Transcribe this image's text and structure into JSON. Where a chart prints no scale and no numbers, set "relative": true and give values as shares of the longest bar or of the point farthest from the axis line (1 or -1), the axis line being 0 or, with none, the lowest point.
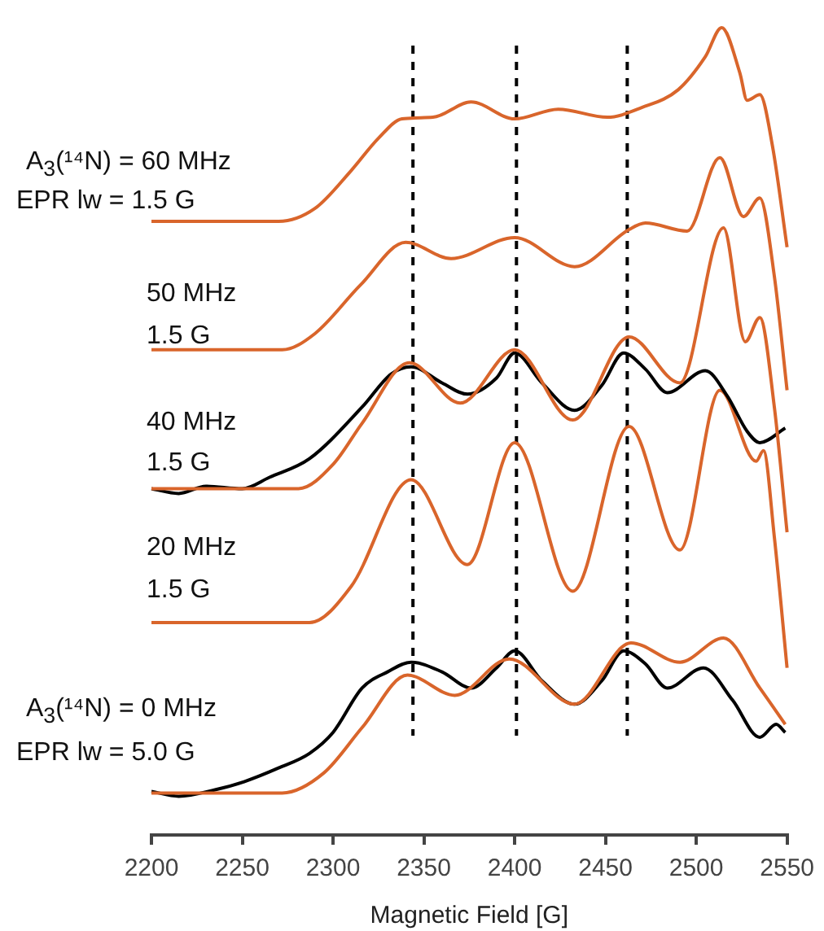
{
  "chart_data": {
    "type": "line",
    "relative": true,
    "xlabel": "Magnetic Field [G]",
    "xlim": [
      2200,
      2550
    ],
    "xticks": [
      2200,
      2250,
      2300,
      2350,
      2400,
      2450,
      2500,
      2550
    ],
    "tick_labels": "x",
    "grid": false,
    "legend": false,
    "marker": "none",
    "series": [
      {
        "color": "#d9652b",
        "x": [
          2200,
          2270,
          2290,
          2310,
          2325,
          2338,
          2355,
          2376,
          2400,
          2424,
          2451,
          2470,
          2490,
          2505,
          2514,
          2524,
          2528,
          2535,
          2542,
          2550
        ],
        "values": [
          0.76,
          0.76,
          0.776,
          0.823,
          0.863,
          0.887,
          0.889,
          0.908,
          0.887,
          0.899,
          0.889,
          0.901,
          0.923,
          0.964,
          1.0,
          0.944,
          0.91,
          0.917,
          0.853,
          0.728
        ]
      },
      {
        "color": "#d9652b",
        "x": [
          2200,
          2272,
          2290,
          2315,
          2340,
          2365,
          2400,
          2433,
          2463,
          2472,
          2495,
          2513,
          2526,
          2535,
          2543,
          2550
        ],
        "values": [
          0.601,
          0.601,
          0.621,
          0.681,
          0.734,
          0.714,
          0.74,
          0.704,
          0.75,
          0.758,
          0.748,
          0.839,
          0.766,
          0.789,
          0.692,
          0.551
        ]
      },
      {
        "color": "#d9652b",
        "x": [
          2200,
          2281,
          2300,
          2316,
          2342,
          2370,
          2400,
          2432,
          2463,
          2491,
          2515,
          2527,
          2535,
          2543,
          2550
        ],
        "values": [
          0.429,
          0.429,
          0.459,
          0.51,
          0.585,
          0.535,
          0.601,
          0.514,
          0.617,
          0.56,
          0.752,
          0.611,
          0.641,
          0.53,
          0.375
        ]
      },
      {
        "color": "#000000",
        "x": [
          2200,
          2215,
          2230,
          2250,
          2265,
          2287,
          2316,
          2332,
          2343,
          2360,
          2374,
          2390,
          2400,
          2415,
          2433,
          2448,
          2460,
          2472,
          2484,
          2505,
          2517,
          2528,
          2535,
          2549
        ],
        "values": [
          0.429,
          0.423,
          0.432,
          0.429,
          0.443,
          0.466,
          0.53,
          0.571,
          0.58,
          0.56,
          0.546,
          0.566,
          0.597,
          0.56,
          0.526,
          0.557,
          0.597,
          0.577,
          0.548,
          0.575,
          0.544,
          0.5,
          0.486,
          0.504
        ]
      },
      {
        "color": "#d9652b",
        "x": [
          2200,
          2287,
          2310,
          2343,
          2374,
          2400,
          2432,
          2463,
          2491,
          2513,
          2533,
          2537,
          2543,
          2550
        ],
        "values": [
          0.263,
          0.263,
          0.308,
          0.44,
          0.335,
          0.486,
          0.302,
          0.506,
          0.353,
          0.551,
          0.463,
          0.476,
          0.369,
          0.207
        ]
      },
      {
        "color": "#d9652b",
        "x": [
          2200,
          2272,
          2295,
          2316,
          2341,
          2367,
          2397,
          2433,
          2464,
          2491,
          2515,
          2535,
          2549
        ],
        "values": [
          0.052,
          0.052,
          0.077,
          0.133,
          0.198,
          0.173,
          0.218,
          0.162,
          0.238,
          0.214,
          0.244,
          0.182,
          0.137
        ]
      },
      {
        "color": "#000000",
        "x": [
          2200,
          2215,
          2235,
          2251,
          2270,
          2287,
          2300,
          2316,
          2330,
          2343,
          2360,
          2376,
          2390,
          2400,
          2415,
          2433,
          2448,
          2460,
          2472,
          2484,
          2504,
          2520,
          2535,
          2544,
          2549
        ],
        "values": [
          0.054,
          0.048,
          0.056,
          0.066,
          0.083,
          0.101,
          0.127,
          0.182,
          0.202,
          0.214,
          0.202,
          0.182,
          0.207,
          0.228,
          0.191,
          0.162,
          0.191,
          0.228,
          0.212,
          0.182,
          0.207,
          0.167,
          0.121,
          0.137,
          0.127
        ]
      }
    ],
    "ref_lines": [
      {
        "axis": "x",
        "value": 2344,
        "color": "#000000",
        "line_style": "dashed"
      },
      {
        "axis": "x",
        "value": 2401,
        "color": "#000000",
        "line_style": "dashed"
      },
      {
        "axis": "x",
        "value": 2462,
        "color": "#000000",
        "line_style": "dashed"
      }
    ],
    "annotations": [
      "A$_{3}$(¹⁴N) = 60 MHz",
      "EPR lw = 1.5 G",
      "50 MHz",
      "1.5 G",
      "40 MHz",
      "1.5 G",
      "20 MHz",
      "1.5 G",
      "A$_{3}$(¹⁴N) = 0 MHz",
      "EPR lw = 5.0 G"
    ]
  }
}
